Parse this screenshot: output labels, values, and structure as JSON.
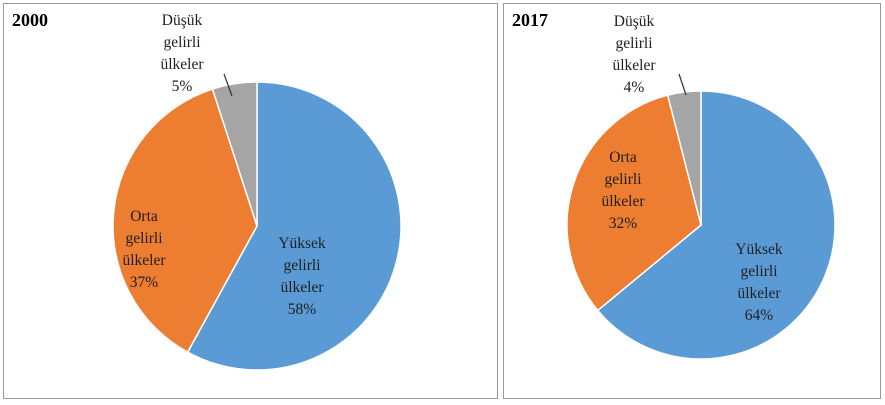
{
  "chart_data": [
    {
      "type": "pie",
      "title": "2000",
      "categories": [
        "Yüksek gelirli ülkeler",
        "Orta gelirli ülkeler",
        "Düşük gelirli ülkeler"
      ],
      "values": [
        58,
        37,
        5
      ],
      "value_labels": [
        "58%",
        "37%",
        "5%"
      ],
      "label_lines": [
        [
          "Yüksek",
          "gelirli",
          "ülkeler"
        ],
        [
          "Orta",
          "gelirli",
          "ülkeler"
        ],
        [
          "Düşük",
          "gelirli",
          "ülkeler"
        ]
      ],
      "start": "12 o'clock",
      "direction": "clockwise"
    },
    {
      "type": "pie",
      "title": "2017",
      "categories": [
        "Yüksek gelirli ülkeler",
        "Orta gelirli ülkeler",
        "Düşük gelirli ülkeler"
      ],
      "values": [
        64,
        32,
        4
      ],
      "value_labels": [
        "64%",
        "32%",
        "4%"
      ],
      "label_lines": [
        [
          "Yüksek",
          "gelirli",
          "ülkeler"
        ],
        [
          "Orta",
          "gelirli",
          "ülkeler"
        ],
        [
          "Düşük",
          "gelirli",
          "ülkeler"
        ]
      ],
      "start": "12 o'clock",
      "direction": "clockwise"
    }
  ],
  "colors": {
    "high": "#5b9bd5",
    "middle": "#ed7d31",
    "low": "#a5a5a5",
    "text": "#1f1f1f"
  }
}
